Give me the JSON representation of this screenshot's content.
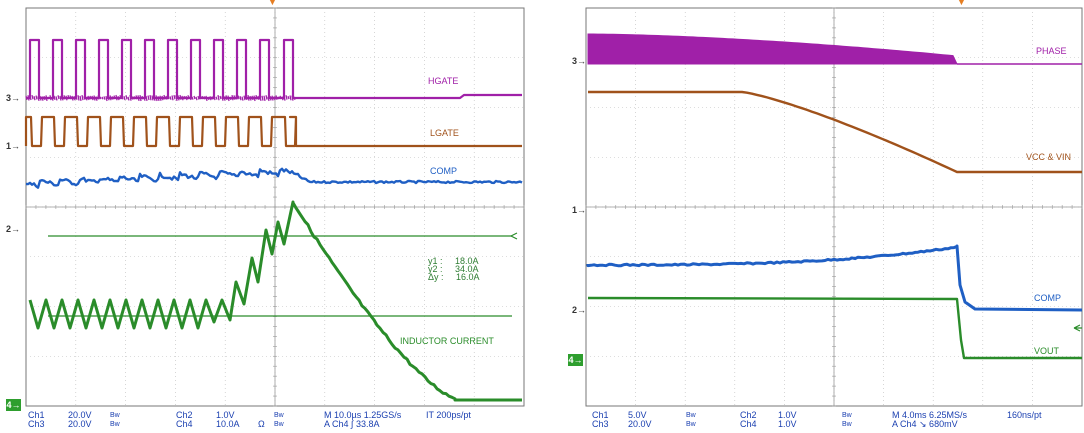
{
  "left_scope": {
    "traces": {
      "hgate": "HGATE",
      "lgate": "LGATE",
      "comp": "COMP",
      "inductor": "INDUCTOR CURRENT"
    },
    "channel_markers": {
      "ch3": "3",
      "ch1": "1",
      "ch2": "2",
      "ch4": "4"
    },
    "measurements": {
      "y1_label": "y1 :",
      "y1_value": "18.0A",
      "y2_label": "y2 :",
      "y2_value": "34.0A",
      "dy_label": "Δy :",
      "dy_value": "16.0A"
    },
    "status": {
      "ch1": "Ch1",
      "ch1_scale": "20.0V",
      "ch1_bw": "Bw",
      "ch2": "Ch2",
      "ch2_scale": "1.0V",
      "ch2_bw": "Bw",
      "ch3": "Ch3",
      "ch3_scale": "20.0V",
      "ch3_bw": "Bw",
      "ch4": "Ch4",
      "ch4_scale": "10.0A",
      "ch4_omega": "Ω",
      "ch4_bw": "Bw",
      "timebase": "M 10.0µs 1.25GS/s",
      "interp": "IT 200ps/pt",
      "trigger": "A  Ch4  ∫  33.8A"
    },
    "colors": {
      "hgate": "#a020a8",
      "lgate": "#a0521b",
      "comp": "#1f5fc4",
      "inductor": "#2a8c2a"
    }
  },
  "right_scope": {
    "traces": {
      "phase": "PHASE",
      "vcc": "VCC & VIN",
      "comp": "COMP",
      "vout": "VOUT"
    },
    "channel_markers": {
      "ch3": "3",
      "ch1": "1",
      "ch2": "2",
      "ch4": "4"
    },
    "status": {
      "ch1": "Ch1",
      "ch1_scale": "5.0V",
      "ch1_bw": "Bw",
      "ch2": "Ch2",
      "ch2_scale": "1.0V",
      "ch2_bw": "Bw",
      "ch3": "Ch3",
      "ch3_scale": "20.0V",
      "ch3_bw": "Bw",
      "ch4": "Ch4",
      "ch4_scale": "1.0V",
      "ch4_bw": "Bw",
      "timebase": "M 4.0ms 6.25MS/s",
      "interp": "160ns/pt",
      "trigger": "A  Ch4  ↘  680mV"
    },
    "colors": {
      "phase": "#a020a8",
      "vcc": "#a0521b",
      "comp": "#1f5fc4",
      "vout": "#2a8c2a"
    }
  }
}
